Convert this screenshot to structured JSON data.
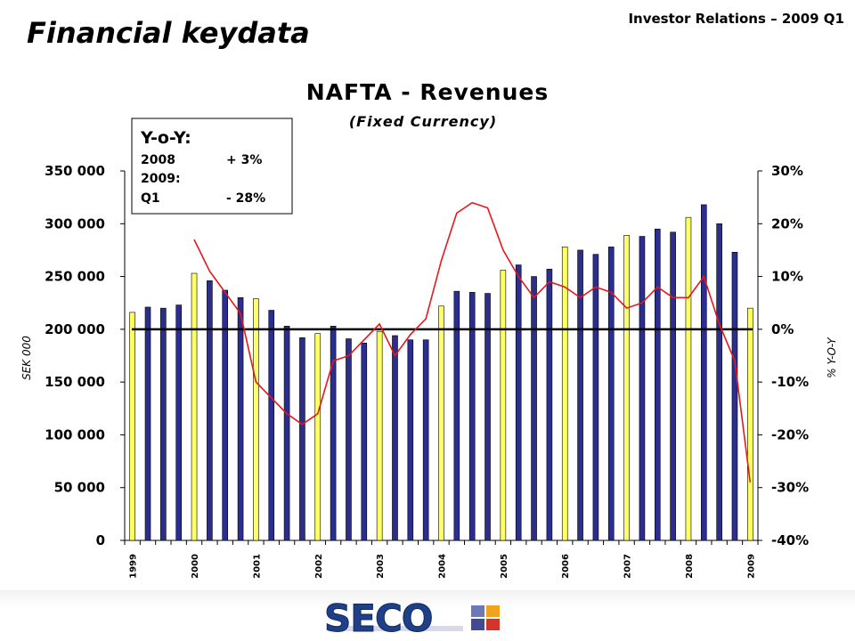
{
  "header": {
    "title": "Financial keydata",
    "report_label": "Investor Relations – 2009 Q1"
  },
  "note": {
    "heading": "Y-o-Y:",
    "lines": [
      {
        "label": "2008",
        "value": "+  3%"
      },
      {
        "label": "2009:",
        "value": ""
      },
      {
        "label": "Q1",
        "value": "- 28%"
      }
    ]
  },
  "footer": {
    "logo_text": "SECO"
  },
  "colors": {
    "bar_blue": "#2b2e8c",
    "bar_yellow": "#ffff66",
    "line_red": "#e8161b",
    "baseline": "#000000"
  },
  "chart_data": {
    "type": "bar",
    "title": "NAFTA - Revenues",
    "subtitle": "(Fixed Currency)",
    "ylabel": "SEK 000",
    "y2label": "% Y-O-Y",
    "ylim": [
      0,
      350000
    ],
    "y2lim": [
      -40,
      30
    ],
    "yticks": [
      "0",
      "50 000",
      "100 000",
      "150 000",
      "200 000",
      "250 000",
      "300 000",
      "350 000"
    ],
    "y2ticks": [
      "-40%",
      "-30%",
      "-20%",
      "-10%",
      "0%",
      "10%",
      "20%",
      "30%"
    ],
    "x_year_labels": [
      "1999",
      "2000",
      "2001",
      "2002",
      "2003",
      "2004",
      "2005",
      "2006",
      "2007",
      "2008",
      "2009"
    ],
    "grid": false,
    "baseline_pct": 0,
    "series": [
      {
        "type": "bar",
        "values": [
          216000,
          221000,
          220000,
          223000,
          253000,
          246000,
          237000,
          230000,
          229000,
          218000,
          203000,
          192000,
          196000,
          203000,
          191000,
          187000,
          198000,
          194000,
          190000,
          190000,
          222000,
          236000,
          235000,
          234000,
          256000,
          261000,
          250000,
          257000,
          278000,
          275000,
          271000,
          278000,
          289000,
          288000,
          295000,
          292000,
          306000,
          318000,
          300000,
          273000,
          220000
        ],
        "highlight": [
          "yellow",
          "blue",
          "blue",
          "blue",
          "yellow",
          "blue",
          "blue",
          "blue",
          "yellow",
          "blue",
          "blue",
          "blue",
          "yellow",
          "blue",
          "blue",
          "blue",
          "yellow",
          "blue",
          "blue",
          "blue",
          "yellow",
          "blue",
          "blue",
          "blue",
          "yellow",
          "blue",
          "blue",
          "blue",
          "yellow",
          "blue",
          "blue",
          "blue",
          "yellow",
          "blue",
          "blue",
          "blue",
          "yellow",
          "blue",
          "blue",
          "blue",
          "yellow"
        ]
      },
      {
        "type": "line",
        "axis": "right",
        "values": [
          null,
          null,
          null,
          null,
          17,
          11,
          7,
          3,
          -10,
          -13,
          -16,
          -18,
          -16,
          -6,
          -5,
          -2,
          1,
          -5,
          -1,
          2,
          13,
          22,
          24,
          23,
          15,
          10,
          6,
          9,
          8,
          6,
          8,
          7,
          4,
          5,
          8,
          6,
          6,
          10,
          1,
          -6,
          -29
        ]
      }
    ]
  }
}
